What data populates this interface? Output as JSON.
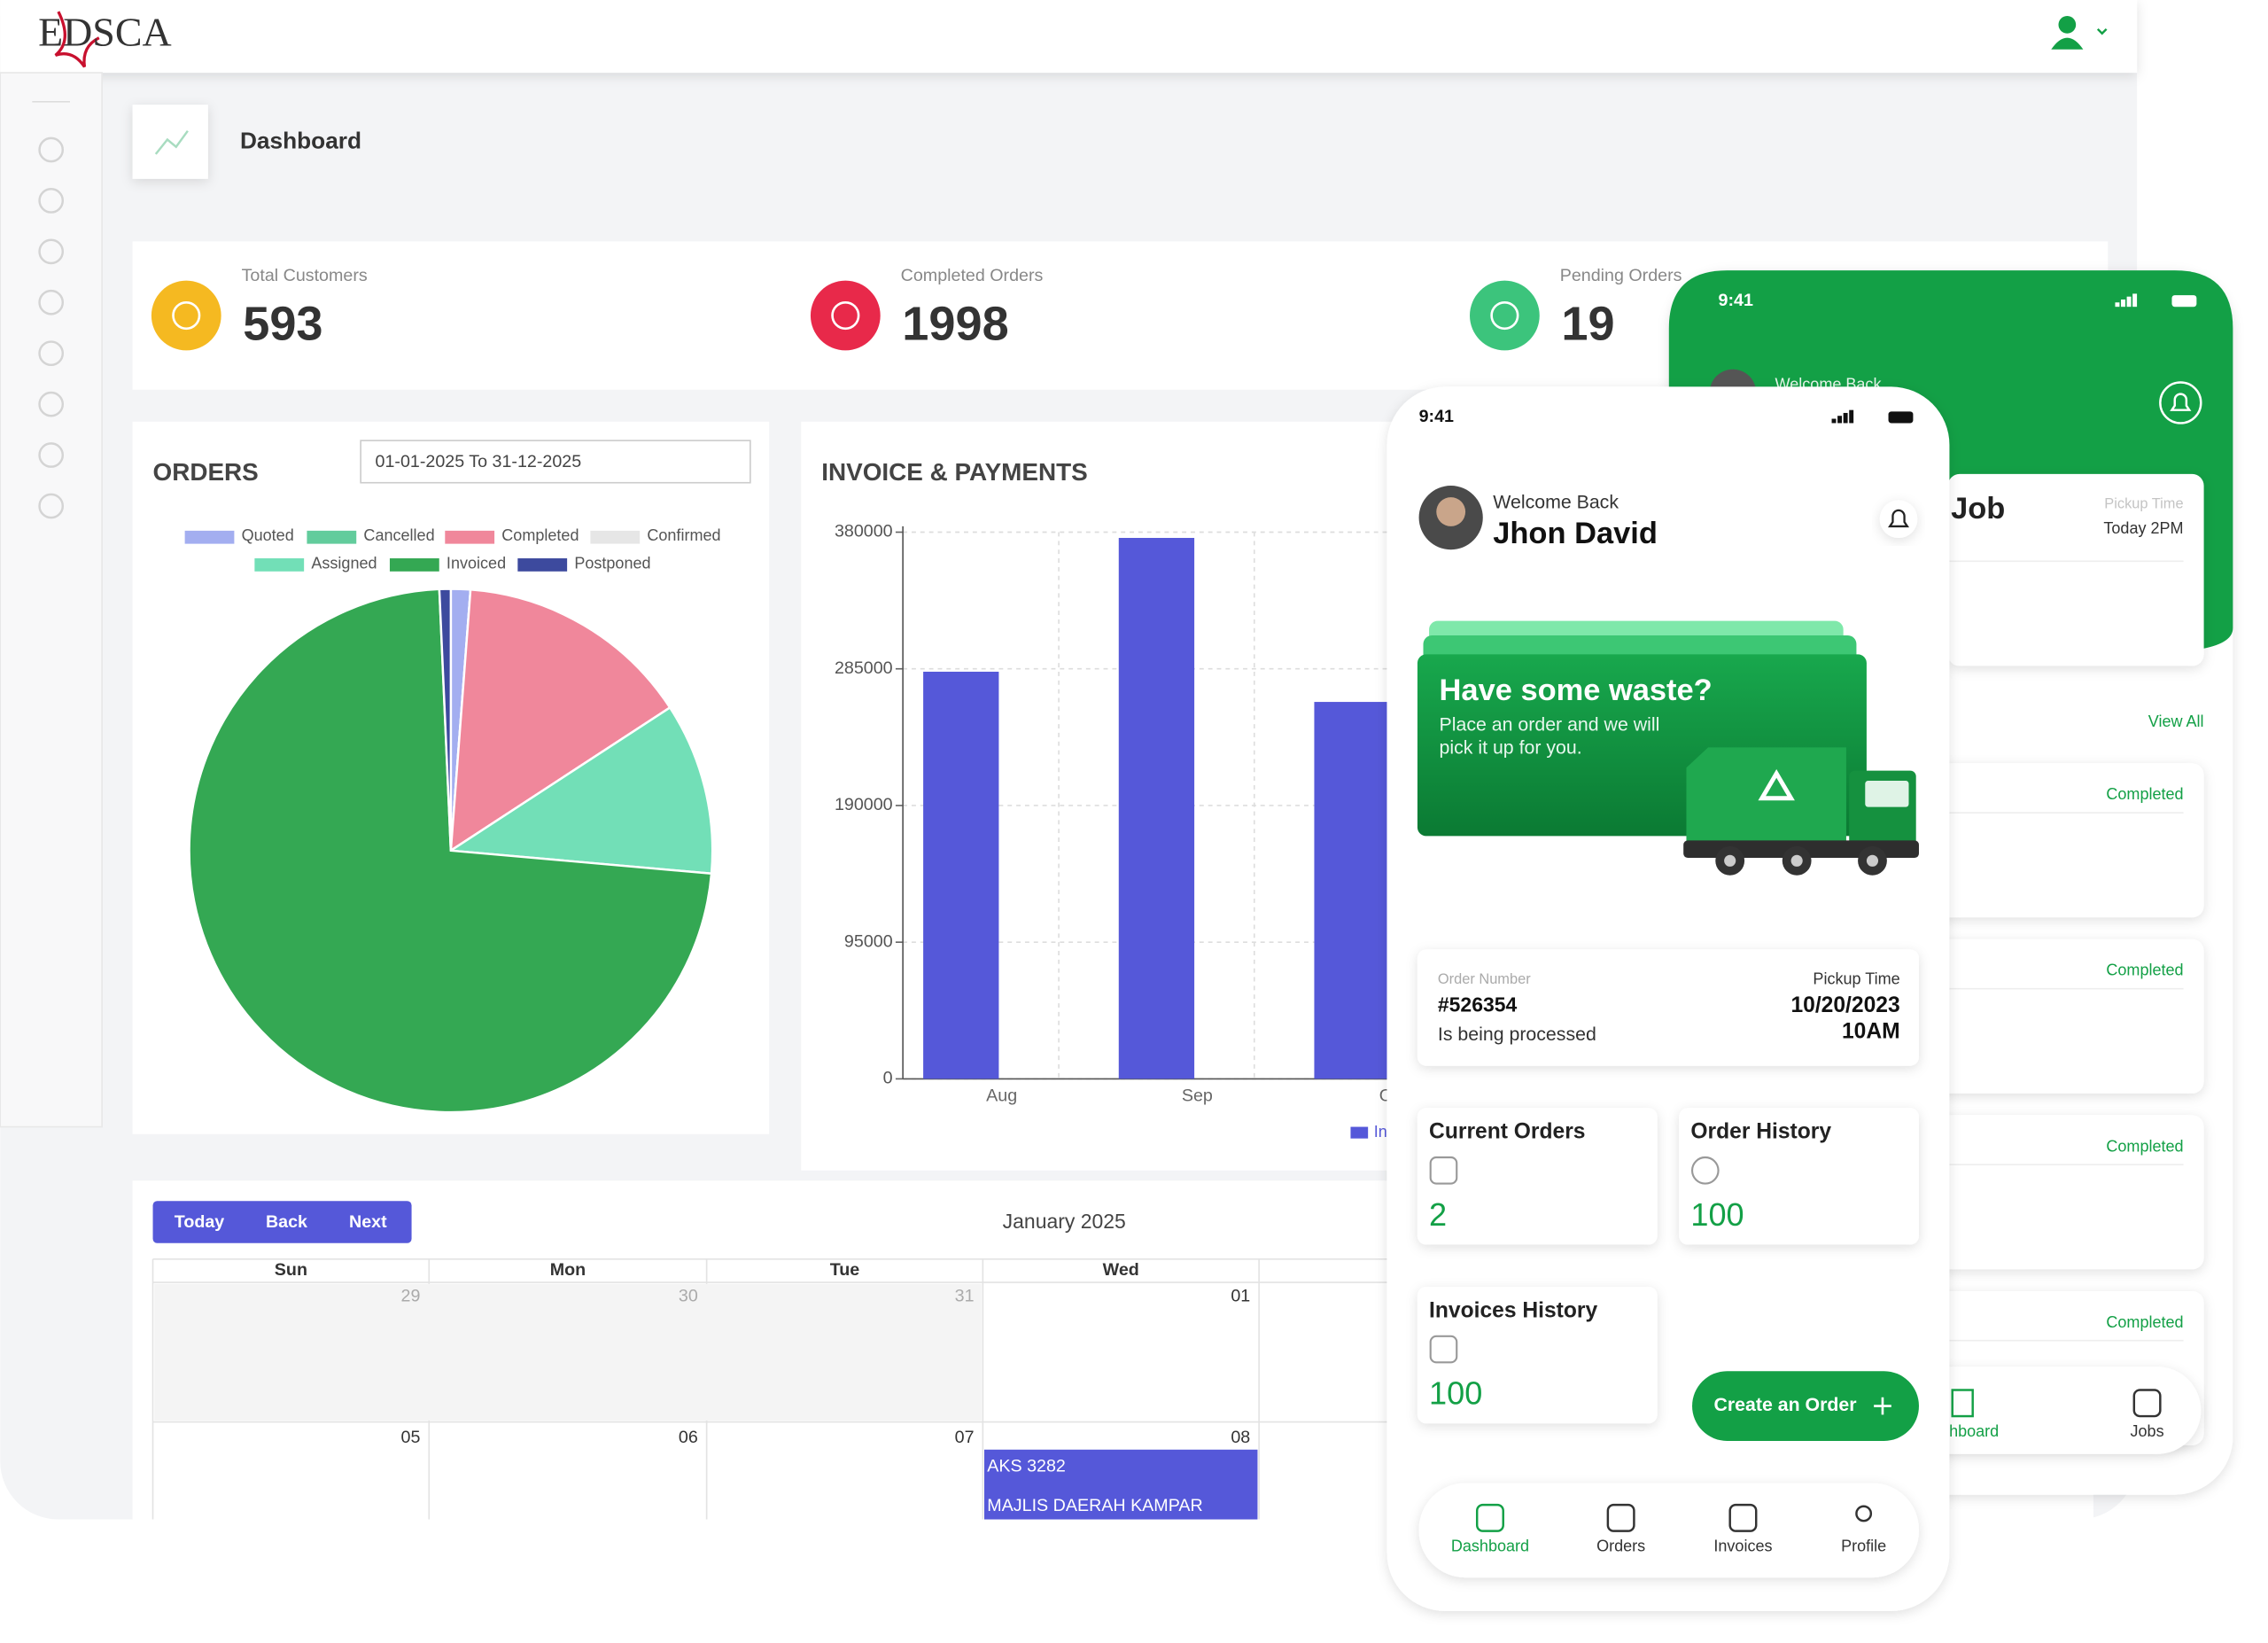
{
  "header": {
    "logo": "EDSCA",
    "page_title": "Dashboard"
  },
  "stats": [
    {
      "label": "Total Customers",
      "value": 593
    },
    {
      "label": "Completed Orders",
      "value": 1998
    },
    {
      "label": "Pending Orders",
      "value": 19
    }
  ],
  "orders_chart": {
    "type": "pie",
    "title": "ORDERS",
    "date_range": "01-01-2025 To 31-12-2025",
    "categories": [
      "Quoted",
      "Cancelled",
      "Completed",
      "Confirmed",
      "Assigned",
      "Invoiced",
      "Postponed"
    ],
    "values": [
      1.2,
      0,
      14.6,
      0,
      10.6,
      72.9,
      0.7
    ],
    "colors": [
      "#a3aef0",
      "#62cc9c",
      "#f0879b",
      "#e6e6e6",
      "#72dfb7",
      "#34a853",
      "#3d4a9e"
    ]
  },
  "invoice_chart": {
    "type": "bar",
    "title": "INVOICE & PAYMENTS",
    "categories": [
      "Aug",
      "Sep",
      "Oct"
    ],
    "series": [
      {
        "name": "Invoices",
        "color": "#5558d9",
        "values": [
          283000,
          376000,
          262000
        ]
      }
    ],
    "ylim": [
      0,
      380000
    ],
    "yticks": [
      0,
      95000,
      190000,
      285000,
      380000
    ],
    "grid": true
  },
  "calendar": {
    "buttons": [
      "Today",
      "Back",
      "Next"
    ],
    "title": "January 2025",
    "days": [
      "Sun",
      "Mon",
      "Tue",
      "Wed"
    ],
    "weeks": [
      [
        "29",
        "30",
        "31",
        "01"
      ],
      [
        "05",
        "06",
        "07",
        "08"
      ]
    ],
    "event": [
      "AKS 3282",
      "MAJLIS DAERAH KAMPAR"
    ]
  },
  "phone_back": {
    "time": "9:41",
    "welcome": "Welcome Back",
    "job_title": "Job",
    "pickup_label": "Pickup Time",
    "pickup_value": "Today 2PM",
    "view_all": "View All",
    "statuses": [
      "Completed",
      "Completed",
      "Completed",
      "Completed"
    ],
    "nav": [
      "Dashboard",
      "Jobs"
    ]
  },
  "phone_front": {
    "time": "9:41",
    "welcome": "Welcome Back",
    "user_name": "Jhon David",
    "banner_title": "Have some waste?",
    "banner_lines": [
      "Place an order and we will",
      "pick it up for you."
    ],
    "order": {
      "number_label": "Order Number",
      "number": "#526354",
      "status": "Is being processed",
      "pickup_label": "Pickup Time",
      "pickup_date": "10/20/2023",
      "pickup_time": "10AM"
    },
    "tiles": [
      {
        "title": "Current Orders",
        "value": 2
      },
      {
        "title": "Order History",
        "value": 100
      },
      {
        "title": "Invoices History",
        "value": 100
      }
    ],
    "cta": "Create an Order",
    "nav": [
      "Dashboard",
      "Orders",
      "Invoices",
      "Profile"
    ]
  }
}
